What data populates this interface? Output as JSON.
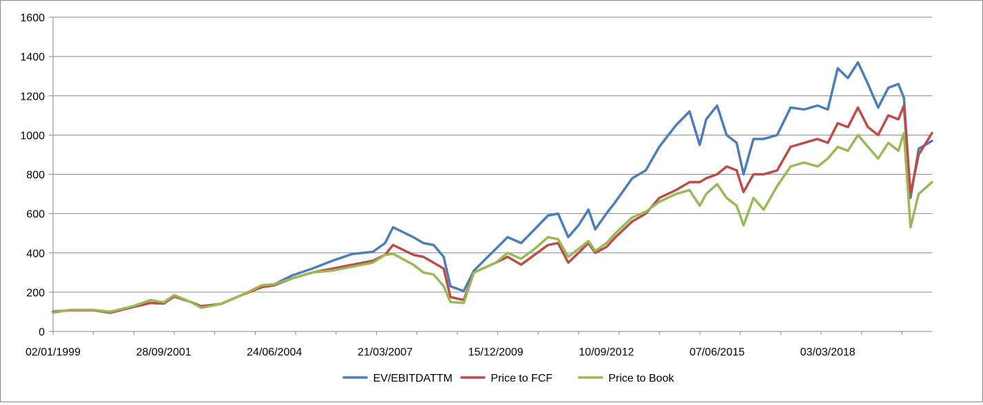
{
  "chart_data": {
    "type": "line",
    "title": "",
    "xlabel": "",
    "ylabel": "",
    "ylim": [
      0,
      1600
    ],
    "yticks": [
      0,
      200,
      400,
      600,
      800,
      1000,
      1200,
      1400,
      1600
    ],
    "xlim": [
      "1999-01-02",
      "2020-09-30"
    ],
    "xticks": [
      "02/01/1999",
      "28/09/2001",
      "24/06/2004",
      "21/03/2007",
      "15/12/2009",
      "10/09/2012",
      "07/06/2015",
      "03/03/2018"
    ],
    "grid": "horizontal",
    "legend_position": "bottom",
    "series": [
      {
        "name": "EV/EBITDATTM",
        "color": "#4a7ebb",
        "points": [
          [
            "1999-01-02",
            100
          ],
          [
            "1999-06-01",
            108
          ],
          [
            "2000-01-01",
            108
          ],
          [
            "2000-06-01",
            100
          ],
          [
            "2001-01-01",
            125
          ],
          [
            "2001-06-01",
            145
          ],
          [
            "2001-09-28",
            142
          ],
          [
            "2002-01-01",
            178
          ],
          [
            "2002-06-01",
            150
          ],
          [
            "2002-09-01",
            128
          ],
          [
            "2003-03-01",
            140
          ],
          [
            "2003-09-01",
            185
          ],
          [
            "2004-03-01",
            230
          ],
          [
            "2004-06-24",
            240
          ],
          [
            "2004-12-01",
            285
          ],
          [
            "2005-06-01",
            320
          ],
          [
            "2005-12-01",
            360
          ],
          [
            "2006-06-01",
            395
          ],
          [
            "2006-12-01",
            405
          ],
          [
            "2007-03-21",
            450
          ],
          [
            "2007-06-01",
            530
          ],
          [
            "2007-12-01",
            480
          ],
          [
            "2008-03-01",
            450
          ],
          [
            "2008-06-01",
            440
          ],
          [
            "2008-09-01",
            380
          ],
          [
            "2008-11-01",
            230
          ],
          [
            "2009-03-01",
            205
          ],
          [
            "2009-06-01",
            310
          ],
          [
            "2009-12-15",
            420
          ],
          [
            "2010-04-01",
            480
          ],
          [
            "2010-08-01",
            450
          ],
          [
            "2010-12-01",
            520
          ],
          [
            "2011-04-01",
            590
          ],
          [
            "2011-07-01",
            600
          ],
          [
            "2011-10-01",
            480
          ],
          [
            "2012-01-01",
            540
          ],
          [
            "2012-04-01",
            620
          ],
          [
            "2012-06-01",
            520
          ],
          [
            "2012-09-10",
            600
          ],
          [
            "2012-12-01",
            660
          ],
          [
            "2013-05-01",
            780
          ],
          [
            "2013-09-01",
            820
          ],
          [
            "2014-01-01",
            940
          ],
          [
            "2014-06-01",
            1050
          ],
          [
            "2014-10-01",
            1120
          ],
          [
            "2015-01-01",
            950
          ],
          [
            "2015-03-01",
            1080
          ],
          [
            "2015-06-07",
            1150
          ],
          [
            "2015-09-01",
            1000
          ],
          [
            "2015-12-01",
            960
          ],
          [
            "2016-02-01",
            800
          ],
          [
            "2016-05-01",
            980
          ],
          [
            "2016-08-01",
            980
          ],
          [
            "2016-12-01",
            1000
          ],
          [
            "2017-04-01",
            1140
          ],
          [
            "2017-08-01",
            1130
          ],
          [
            "2017-12-01",
            1150
          ],
          [
            "2018-03-03",
            1130
          ],
          [
            "2018-06-01",
            1340
          ],
          [
            "2018-09-01",
            1290
          ],
          [
            "2018-12-01",
            1370
          ],
          [
            "2019-03-01",
            1260
          ],
          [
            "2019-06-01",
            1140
          ],
          [
            "2019-09-01",
            1240
          ],
          [
            "2019-12-01",
            1260
          ],
          [
            "2020-01-20",
            1190
          ],
          [
            "2020-03-20",
            680
          ],
          [
            "2020-06-01",
            930
          ],
          [
            "2020-09-30",
            970
          ]
        ]
      },
      {
        "name": "Price to FCF",
        "color": "#be4b48",
        "points": [
          [
            "1999-01-02",
            100
          ],
          [
            "1999-06-01",
            108
          ],
          [
            "2000-01-01",
            108
          ],
          [
            "2000-06-01",
            95
          ],
          [
            "2001-01-01",
            125
          ],
          [
            "2001-06-01",
            145
          ],
          [
            "2001-09-28",
            142
          ],
          [
            "2002-01-01",
            178
          ],
          [
            "2002-06-01",
            150
          ],
          [
            "2002-09-01",
            128
          ],
          [
            "2003-03-01",
            140
          ],
          [
            "2003-09-01",
            185
          ],
          [
            "2004-03-01",
            225
          ],
          [
            "2004-06-24",
            235
          ],
          [
            "2004-12-01",
            270
          ],
          [
            "2005-06-01",
            300
          ],
          [
            "2005-12-01",
            320
          ],
          [
            "2006-06-01",
            340
          ],
          [
            "2006-12-01",
            360
          ],
          [
            "2007-03-21",
            390
          ],
          [
            "2007-06-01",
            440
          ],
          [
            "2007-12-01",
            390
          ],
          [
            "2008-03-01",
            380
          ],
          [
            "2008-06-01",
            350
          ],
          [
            "2008-09-01",
            320
          ],
          [
            "2008-11-01",
            175
          ],
          [
            "2009-03-01",
            160
          ],
          [
            "2009-06-01",
            300
          ],
          [
            "2009-12-15",
            350
          ],
          [
            "2010-04-01",
            380
          ],
          [
            "2010-08-01",
            340
          ],
          [
            "2010-12-01",
            390
          ],
          [
            "2011-04-01",
            440
          ],
          [
            "2011-07-01",
            450
          ],
          [
            "2011-10-01",
            350
          ],
          [
            "2012-01-01",
            400
          ],
          [
            "2012-04-01",
            450
          ],
          [
            "2012-06-01",
            400
          ],
          [
            "2012-09-10",
            430
          ],
          [
            "2012-12-01",
            480
          ],
          [
            "2013-05-01",
            560
          ],
          [
            "2013-09-01",
            600
          ],
          [
            "2014-01-01",
            680
          ],
          [
            "2014-06-01",
            720
          ],
          [
            "2014-10-01",
            760
          ],
          [
            "2015-01-01",
            760
          ],
          [
            "2015-03-01",
            780
          ],
          [
            "2015-06-07",
            800
          ],
          [
            "2015-09-01",
            840
          ],
          [
            "2015-12-01",
            820
          ],
          [
            "2016-02-01",
            710
          ],
          [
            "2016-05-01",
            800
          ],
          [
            "2016-08-01",
            800
          ],
          [
            "2016-12-01",
            820
          ],
          [
            "2017-04-01",
            940
          ],
          [
            "2017-08-01",
            960
          ],
          [
            "2017-12-01",
            980
          ],
          [
            "2018-03-03",
            960
          ],
          [
            "2018-06-01",
            1060
          ],
          [
            "2018-09-01",
            1040
          ],
          [
            "2018-12-01",
            1140
          ],
          [
            "2019-03-01",
            1040
          ],
          [
            "2019-06-01",
            1000
          ],
          [
            "2019-09-01",
            1100
          ],
          [
            "2019-12-01",
            1080
          ],
          [
            "2020-01-20",
            1150
          ],
          [
            "2020-03-20",
            700
          ],
          [
            "2020-06-01",
            900
          ],
          [
            "2020-09-30",
            1010
          ]
        ]
      },
      {
        "name": "Price to Book",
        "color": "#98b954",
        "points": [
          [
            "1999-01-02",
            95
          ],
          [
            "1999-06-01",
            110
          ],
          [
            "2000-01-01",
            110
          ],
          [
            "2000-06-01",
            100
          ],
          [
            "2001-01-01",
            130
          ],
          [
            "2001-06-01",
            160
          ],
          [
            "2001-09-28",
            148
          ],
          [
            "2002-01-01",
            185
          ],
          [
            "2002-06-01",
            150
          ],
          [
            "2002-09-01",
            120
          ],
          [
            "2003-03-01",
            140
          ],
          [
            "2003-09-01",
            185
          ],
          [
            "2004-03-01",
            235
          ],
          [
            "2004-06-24",
            240
          ],
          [
            "2004-12-01",
            270
          ],
          [
            "2005-06-01",
            300
          ],
          [
            "2005-12-01",
            310
          ],
          [
            "2006-06-01",
            330
          ],
          [
            "2006-12-01",
            350
          ],
          [
            "2007-03-21",
            390
          ],
          [
            "2007-06-01",
            395
          ],
          [
            "2007-12-01",
            340
          ],
          [
            "2008-03-01",
            300
          ],
          [
            "2008-06-01",
            290
          ],
          [
            "2008-09-01",
            230
          ],
          [
            "2008-11-01",
            150
          ],
          [
            "2009-03-01",
            145
          ],
          [
            "2009-06-01",
            300
          ],
          [
            "2009-12-15",
            350
          ],
          [
            "2010-04-01",
            400
          ],
          [
            "2010-08-01",
            370
          ],
          [
            "2010-12-01",
            420
          ],
          [
            "2011-04-01",
            480
          ],
          [
            "2011-07-01",
            470
          ],
          [
            "2011-10-01",
            380
          ],
          [
            "2012-01-01",
            420
          ],
          [
            "2012-04-01",
            460
          ],
          [
            "2012-06-01",
            410
          ],
          [
            "2012-09-10",
            450
          ],
          [
            "2012-12-01",
            500
          ],
          [
            "2013-05-01",
            580
          ],
          [
            "2013-09-01",
            610
          ],
          [
            "2014-01-01",
            660
          ],
          [
            "2014-06-01",
            700
          ],
          [
            "2014-10-01",
            720
          ],
          [
            "2015-01-01",
            640
          ],
          [
            "2015-03-01",
            700
          ],
          [
            "2015-06-07",
            750
          ],
          [
            "2015-09-01",
            680
          ],
          [
            "2015-12-01",
            640
          ],
          [
            "2016-02-01",
            540
          ],
          [
            "2016-05-01",
            680
          ],
          [
            "2016-08-01",
            620
          ],
          [
            "2016-12-01",
            740
          ],
          [
            "2017-04-01",
            840
          ],
          [
            "2017-08-01",
            860
          ],
          [
            "2017-12-01",
            840
          ],
          [
            "2018-03-03",
            880
          ],
          [
            "2018-06-01",
            940
          ],
          [
            "2018-09-01",
            920
          ],
          [
            "2018-12-01",
            1000
          ],
          [
            "2019-03-01",
            940
          ],
          [
            "2019-06-01",
            880
          ],
          [
            "2019-09-01",
            960
          ],
          [
            "2019-12-01",
            920
          ],
          [
            "2020-01-20",
            1010
          ],
          [
            "2020-03-20",
            530
          ],
          [
            "2020-06-01",
            700
          ],
          [
            "2020-09-30",
            760
          ]
        ]
      }
    ]
  }
}
